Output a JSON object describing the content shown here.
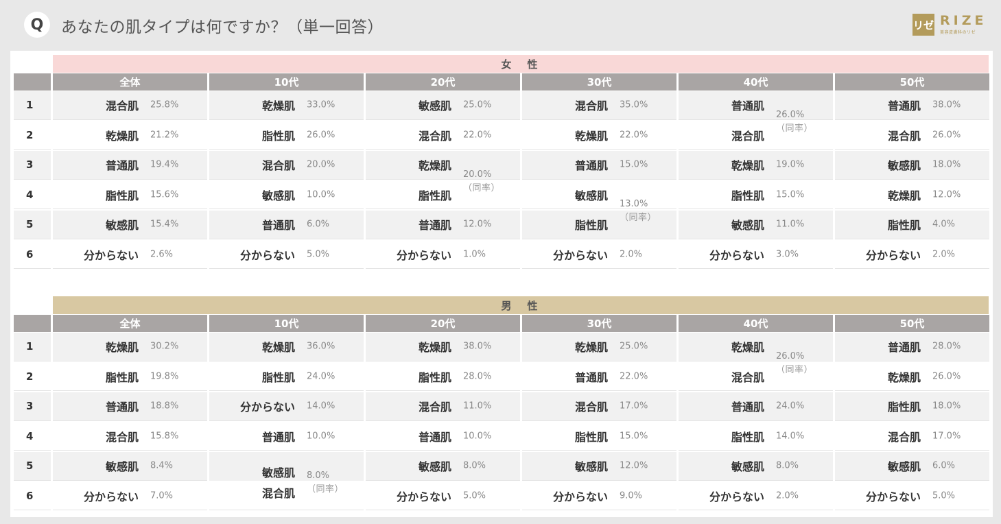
{
  "header": {
    "badge": "Q",
    "question": "あなたの肌タイプは何ですか？（単一回答）",
    "logo_mark": "リゼ",
    "logo_word": "RIZE",
    "logo_sub": "美容皮膚科のリゼ"
  },
  "tie_note": "（同率）",
  "sections": [
    {
      "label": "女　性",
      "ranks": [
        "1",
        "2",
        "3",
        "4",
        "5",
        "6"
      ],
      "groups": [
        {
          "name": "全体",
          "rows": [
            {
              "type": "混合肌",
              "pct": "25.8%"
            },
            {
              "type": "乾燥肌",
              "pct": "21.2%"
            },
            {
              "type": "普通肌",
              "pct": "19.4%"
            },
            {
              "type": "脂性肌",
              "pct": "15.6%"
            },
            {
              "type": "敏感肌",
              "pct": "15.4%"
            },
            {
              "type": "分からない",
              "pct": "2.6%"
            }
          ]
        },
        {
          "name": "10代",
          "rows": [
            {
              "type": "乾燥肌",
              "pct": "33.0%"
            },
            {
              "type": "脂性肌",
              "pct": "26.0%"
            },
            {
              "type": "混合肌",
              "pct": "20.0%"
            },
            {
              "type": "敏感肌",
              "pct": "10.0%"
            },
            {
              "type": "普通肌",
              "pct": "6.0%"
            },
            {
              "type": "分からない",
              "pct": "5.0%"
            }
          ]
        },
        {
          "name": "20代",
          "rows": [
            {
              "type": "敏感肌",
              "pct": "25.0%"
            },
            {
              "type": "混合肌",
              "pct": "22.0%"
            },
            {
              "type": "乾燥肌",
              "pct": ""
            },
            {
              "type": "脂性肌",
              "pct": ""
            },
            {
              "type": "普通肌",
              "pct": "12.0%"
            },
            {
              "type": "分からない",
              "pct": "1.0%"
            }
          ],
          "tie": {
            "pct": "20.0%"
          }
        },
        {
          "name": "30代",
          "rows": [
            {
              "type": "混合肌",
              "pct": "35.0%"
            },
            {
              "type": "乾燥肌",
              "pct": "22.0%"
            },
            {
              "type": "普通肌",
              "pct": "15.0%"
            },
            {
              "type": "敏感肌",
              "pct": ""
            },
            {
              "type": "脂性肌",
              "pct": ""
            },
            {
              "type": "分からない",
              "pct": "2.0%"
            }
          ],
          "tie": {
            "pct": "13.0%"
          }
        },
        {
          "name": "40代",
          "rows": [
            {
              "type": "普通肌",
              "pct": ""
            },
            {
              "type": "混合肌",
              "pct": ""
            },
            {
              "type": "乾燥肌",
              "pct": "19.0%"
            },
            {
              "type": "脂性肌",
              "pct": "15.0%"
            },
            {
              "type": "敏感肌",
              "pct": "11.0%"
            },
            {
              "type": "分からない",
              "pct": "3.0%"
            }
          ],
          "tie": {
            "pct": "26.0%"
          }
        },
        {
          "name": "50代",
          "rows": [
            {
              "type": "普通肌",
              "pct": "38.0%"
            },
            {
              "type": "混合肌",
              "pct": "26.0%"
            },
            {
              "type": "敏感肌",
              "pct": "18.0%"
            },
            {
              "type": "乾燥肌",
              "pct": "12.0%"
            },
            {
              "type": "脂性肌",
              "pct": "4.0%"
            },
            {
              "type": "分からない",
              "pct": "2.0%"
            }
          ]
        }
      ]
    },
    {
      "label": "男　性",
      "ranks": [
        "1",
        "2",
        "3",
        "4",
        "5",
        "6"
      ],
      "groups": [
        {
          "name": "全体",
          "rows": [
            {
              "type": "乾燥肌",
              "pct": "30.2%"
            },
            {
              "type": "脂性肌",
              "pct": "19.8%"
            },
            {
              "type": "普通肌",
              "pct": "18.8%"
            },
            {
              "type": "混合肌",
              "pct": "15.8%"
            },
            {
              "type": "敏感肌",
              "pct": "8.4%"
            },
            {
              "type": "分からない",
              "pct": "7.0%"
            }
          ]
        },
        {
          "name": "10代",
          "rows": [
            {
              "type": "乾燥肌",
              "pct": "36.0%"
            },
            {
              "type": "脂性肌",
              "pct": "24.0%"
            },
            {
              "type": "分からない",
              "pct": "14.0%"
            },
            {
              "type": "普通肌",
              "pct": "10.0%"
            }
          ],
          "tie_block": {
            "types": [
              "敏感肌",
              "混合肌"
            ],
            "pct": "8.0%"
          }
        },
        {
          "name": "20代",
          "rows": [
            {
              "type": "乾燥肌",
              "pct": "38.0%"
            },
            {
              "type": "脂性肌",
              "pct": "28.0%"
            },
            {
              "type": "混合肌",
              "pct": "11.0%"
            },
            {
              "type": "普通肌",
              "pct": "10.0%"
            },
            {
              "type": "敏感肌",
              "pct": "8.0%"
            },
            {
              "type": "分からない",
              "pct": "5.0%"
            }
          ]
        },
        {
          "name": "30代",
          "rows": [
            {
              "type": "乾燥肌",
              "pct": "25.0%"
            },
            {
              "type": "普通肌",
              "pct": "22.0%"
            },
            {
              "type": "混合肌",
              "pct": "17.0%"
            },
            {
              "type": "脂性肌",
              "pct": "15.0%"
            },
            {
              "type": "敏感肌",
              "pct": "12.0%"
            },
            {
              "type": "分からない",
              "pct": "9.0%"
            }
          ]
        },
        {
          "name": "40代",
          "rows": [
            {
              "type": "乾燥肌",
              "pct": ""
            },
            {
              "type": "混合肌",
              "pct": ""
            },
            {
              "type": "普通肌",
              "pct": "24.0%"
            },
            {
              "type": "脂性肌",
              "pct": "14.0%"
            },
            {
              "type": "敏感肌",
              "pct": "8.0%"
            },
            {
              "type": "分からない",
              "pct": "2.0%"
            }
          ],
          "tie": {
            "pct": "26.0%"
          }
        },
        {
          "name": "50代",
          "rows": [
            {
              "type": "普通肌",
              "pct": "28.0%"
            },
            {
              "type": "乾燥肌",
              "pct": "26.0%"
            },
            {
              "type": "脂性肌",
              "pct": "18.0%"
            },
            {
              "type": "混合肌",
              "pct": "17.0%"
            },
            {
              "type": "敏感肌",
              "pct": "6.0%"
            },
            {
              "type": "分からない",
              "pct": "5.0%"
            }
          ]
        }
      ]
    }
  ]
}
